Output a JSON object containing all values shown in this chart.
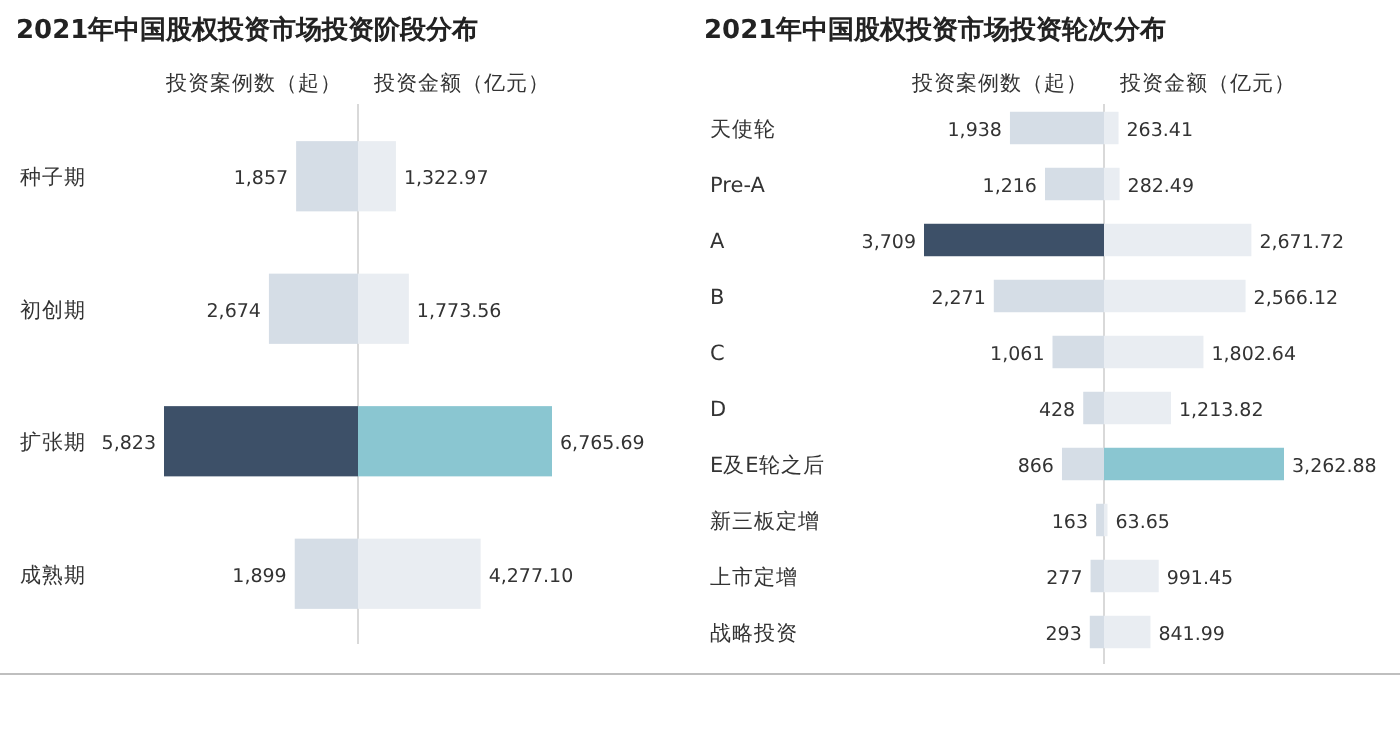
{
  "chart_data": [
    {
      "type": "bar",
      "orientation": "horizontal",
      "title": "2021年中国股权投资市场投资阶段分布",
      "subtitle": "投资案例数（起）",
      "categories": [
        "种子期",
        "初创期",
        "扩张期",
        "成熟期"
      ],
      "values": [
        1857,
        2674,
        5823,
        1899
      ],
      "value_labels": [
        "1,857",
        "2,674",
        "5,823",
        "1,899"
      ],
      "colors": [
        "#d5dde6",
        "#d5dde6",
        "#3d5068",
        "#d5dde6"
      ]
    },
    {
      "type": "bar",
      "orientation": "horizontal",
      "subtitle": "投资金额（亿元）",
      "categories": [
        null,
        null,
        null,
        null
      ],
      "values": [
        1322.97,
        1773.56,
        6765.69,
        4277.1
      ],
      "value_labels": [
        "1,322.97",
        "1,773.56",
        "6,765.69",
        "4,277.10"
      ],
      "colors": [
        "#e9edf2",
        "#e9edf2",
        "#8ac6d1",
        "#e9edf2"
      ]
    },
    {
      "type": "bar",
      "orientation": "horizontal",
      "title": "2021年中国股权投资市场投资轮次分布",
      "subtitle": "投资案例数（起）",
      "categories": [
        "天使轮",
        "Pre-A",
        "A",
        "B",
        "C",
        "D",
        "E及E轮之后",
        "新三板定增",
        "上市定增",
        "战略投资"
      ],
      "values": [
        1938,
        1216,
        3709,
        2271,
        1061,
        428,
        866,
        163,
        277,
        293
      ],
      "value_labels": [
        "1,938",
        "1,216",
        "3,709",
        "2,271",
        "1,061",
        "428",
        "866",
        "163",
        "277",
        "293"
      ],
      "colors": [
        "#d5dde6",
        "#d5dde6",
        "#3d5068",
        "#d5dde6",
        "#d5dde6",
        "#d5dde6",
        "#d5dde6",
        "#d5dde6",
        "#d5dde6",
        "#d5dde6"
      ]
    },
    {
      "type": "bar",
      "orientation": "horizontal",
      "subtitle": "投资金额（亿元）",
      "categories": [
        null,
        null,
        null,
        null,
        null,
        null,
        null,
        null,
        null,
        null
      ],
      "values": [
        263.41,
        282.49,
        2671.72,
        2566.12,
        1802.64,
        1213.82,
        3262.88,
        63.65,
        991.45,
        841.99
      ],
      "value_labels": [
        "263.41",
        "282.49",
        "2,671.72",
        "2,566.12",
        "1,802.64",
        "1,213.82",
        "3,262.88",
        "63.65",
        "991.45",
        "841.99"
      ],
      "colors": [
        "#e9edf2",
        "#e9edf2",
        "#e9edf2",
        "#e9edf2",
        "#e9edf2",
        "#e9edf2",
        "#8ac6d1",
        "#e9edf2",
        "#e9edf2",
        "#e9edf2"
      ]
    }
  ]
}
